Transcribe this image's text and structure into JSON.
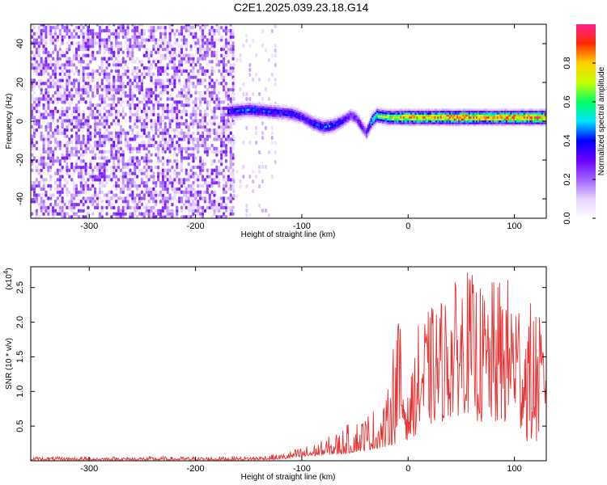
{
  "title": "C2E1.2025.039.23.18.G14",
  "chart_data": [
    {
      "type": "heatmap",
      "xlabel": "Height of straight line (km)",
      "ylabel": "Frequency (Hz)",
      "xlim": [
        -355,
        130
      ],
      "ylim": [
        -50,
        50
      ],
      "xticks": [
        -300,
        -200,
        -100,
        0,
        100
      ],
      "yticks": [
        -40,
        -20,
        0,
        20,
        40
      ],
      "colorbar": {
        "label": "Normalized spectral amplitude",
        "range": [
          0,
          1
        ],
        "ticks": [
          "0.0",
          "0.2",
          "0.4",
          "0.6",
          "0.8"
        ],
        "colors": [
          "#ffffff",
          "#e6d2ff",
          "#a060ff",
          "#6a00ff",
          "#0000ff",
          "#00e5ff",
          "#00ff60",
          "#c8ff00",
          "#ffd000",
          "#ff2a00",
          "#ff2090"
        ]
      },
      "noise_region": {
        "x_range": [
          -355,
          -165
        ],
        "amplitude_level": 0.2
      },
      "sparse_noise_region": {
        "x_range": [
          -165,
          -125
        ],
        "amplitude_level": 0.1
      },
      "signal_track": {
        "x": [
          -170,
          -150,
          -130,
          -110,
          -100,
          -90,
          -80,
          -70,
          -60,
          -55,
          -50,
          -45,
          -40,
          -35,
          -30,
          -20,
          0,
          20,
          50,
          80,
          100,
          130
        ],
        "frequency": [
          5,
          6,
          5,
          4,
          2,
          -1,
          -3,
          -2,
          1,
          3,
          2,
          -2,
          -6,
          0,
          3,
          2,
          2,
          2,
          2,
          2,
          2,
          2
        ],
        "amplitude": [
          0.4,
          0.45,
          0.4,
          0.4,
          0.35,
          0.4,
          0.45,
          0.45,
          0.35,
          0.3,
          0.3,
          0.35,
          0.3,
          0.5,
          0.6,
          0.7,
          0.85,
          0.85,
          0.9,
          0.85,
          0.9,
          0.9
        ]
      }
    },
    {
      "type": "line",
      "xlabel": "Height of straight line (km)",
      "ylabel": "SNR (10 * v/v)",
      "scale_label": "(x10",
      "scale_exponent": "4",
      "xlim": [
        -355,
        130
      ],
      "ylim": [
        0,
        2.8
      ],
      "xticks": [
        -300,
        -200,
        -100,
        0,
        100
      ],
      "yticks": [
        "0.5",
        "1.0",
        "1.5",
        "2.0",
        "2.5"
      ],
      "color": "#e83232",
      "envelope": {
        "x": [
          -355,
          -200,
          -150,
          -120,
          -100,
          -80,
          -60,
          -40,
          -20,
          -10,
          0,
          10,
          20,
          40,
          55,
          70,
          90,
          100,
          110,
          120,
          130
        ],
        "upper": [
          0.06,
          0.06,
          0.07,
          0.1,
          0.2,
          0.3,
          0.5,
          0.7,
          0.9,
          2.3,
          0.9,
          2.0,
          2.2,
          2.5,
          2.8,
          2.5,
          2.7,
          2.6,
          2.3,
          2.3,
          1.7
        ],
        "lower": [
          0.01,
          0.01,
          0.01,
          0.02,
          0.05,
          0.08,
          0.1,
          0.15,
          0.2,
          0.25,
          0.3,
          0.4,
          0.5,
          0.6,
          0.7,
          0.5,
          0.5,
          0.6,
          0.3,
          0.2,
          0.7
        ]
      }
    }
  ]
}
